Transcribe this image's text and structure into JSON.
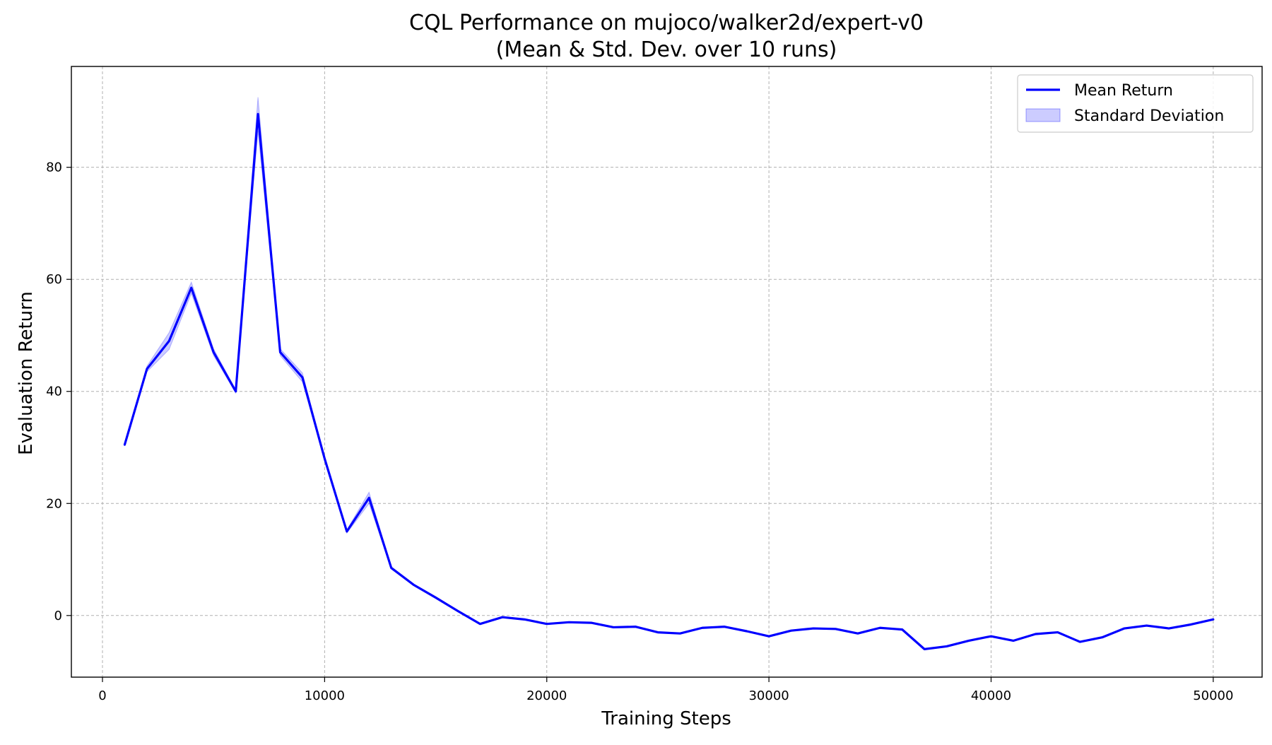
{
  "chart_data": {
    "type": "line",
    "title": "CQL Performance on mujoco/walker2d/expert-v0",
    "subtitle": "(Mean & Std. Dev. over 10 runs)",
    "xlabel": "Training Steps",
    "ylabel": "Evaluation Return",
    "xlim": [
      -1400,
      52200
    ],
    "ylim": [
      -11,
      98
    ],
    "xticks": [
      0,
      10000,
      20000,
      30000,
      40000,
      50000
    ],
    "yticks": [
      0,
      20,
      40,
      60,
      80
    ],
    "grid": true,
    "legend_position": "top-right",
    "colors": {
      "line": "#0000ff",
      "band": "#0000ff",
      "grid": "#b0b0b0"
    },
    "x": [
      1000,
      2000,
      3000,
      4000,
      5000,
      6000,
      7000,
      8000,
      9000,
      10000,
      11000,
      12000,
      13000,
      14000,
      15000,
      16000,
      17000,
      18000,
      19000,
      20000,
      21000,
      22000,
      23000,
      24000,
      25000,
      26000,
      27000,
      28000,
      29000,
      30000,
      31000,
      32000,
      33000,
      34000,
      35000,
      36000,
      37000,
      38000,
      39000,
      40000,
      41000,
      42000,
      43000,
      44000,
      45000,
      46000,
      47000,
      48000,
      49000,
      50000
    ],
    "series": [
      {
        "name": "Mean Return",
        "kind": "line",
        "values": [
          30.5,
          44.0,
          49.0,
          58.5,
          47.0,
          40.0,
          89.5,
          47.0,
          42.5,
          28.0,
          15.0,
          21.0,
          8.5,
          5.5,
          3.2,
          0.8,
          -1.5,
          -0.3,
          -0.7,
          -1.5,
          -1.2,
          -1.3,
          -2.1,
          -2.0,
          -3.0,
          -3.2,
          -2.2,
          -2.0,
          -2.8,
          -3.7,
          -2.7,
          -2.3,
          -2.4,
          -3.2,
          -2.2,
          -2.5,
          -6.0,
          -5.5,
          -4.5,
          -3.7,
          -4.5,
          -3.3,
          -3.0,
          -4.7,
          -3.9,
          -2.3,
          -1.8,
          -2.3,
          -1.6,
          -0.7
        ]
      },
      {
        "name": "Standard Deviation",
        "kind": "band",
        "std": [
          0.2,
          0.5,
          1.5,
          1.0,
          0.6,
          0.3,
          3.0,
          0.6,
          0.8,
          0.3,
          0.3,
          1.0,
          0.2,
          0.1,
          0.1,
          0.1,
          0.1,
          0.1,
          0.1,
          0.1,
          0.1,
          0.1,
          0.1,
          0.1,
          0.1,
          0.1,
          0.1,
          0.1,
          0.1,
          0.1,
          0.1,
          0.1,
          0.1,
          0.1,
          0.1,
          0.1,
          0.1,
          0.1,
          0.1,
          0.1,
          0.1,
          0.1,
          0.1,
          0.1,
          0.1,
          0.1,
          0.1,
          0.1,
          0.1,
          0.1
        ]
      }
    ]
  }
}
